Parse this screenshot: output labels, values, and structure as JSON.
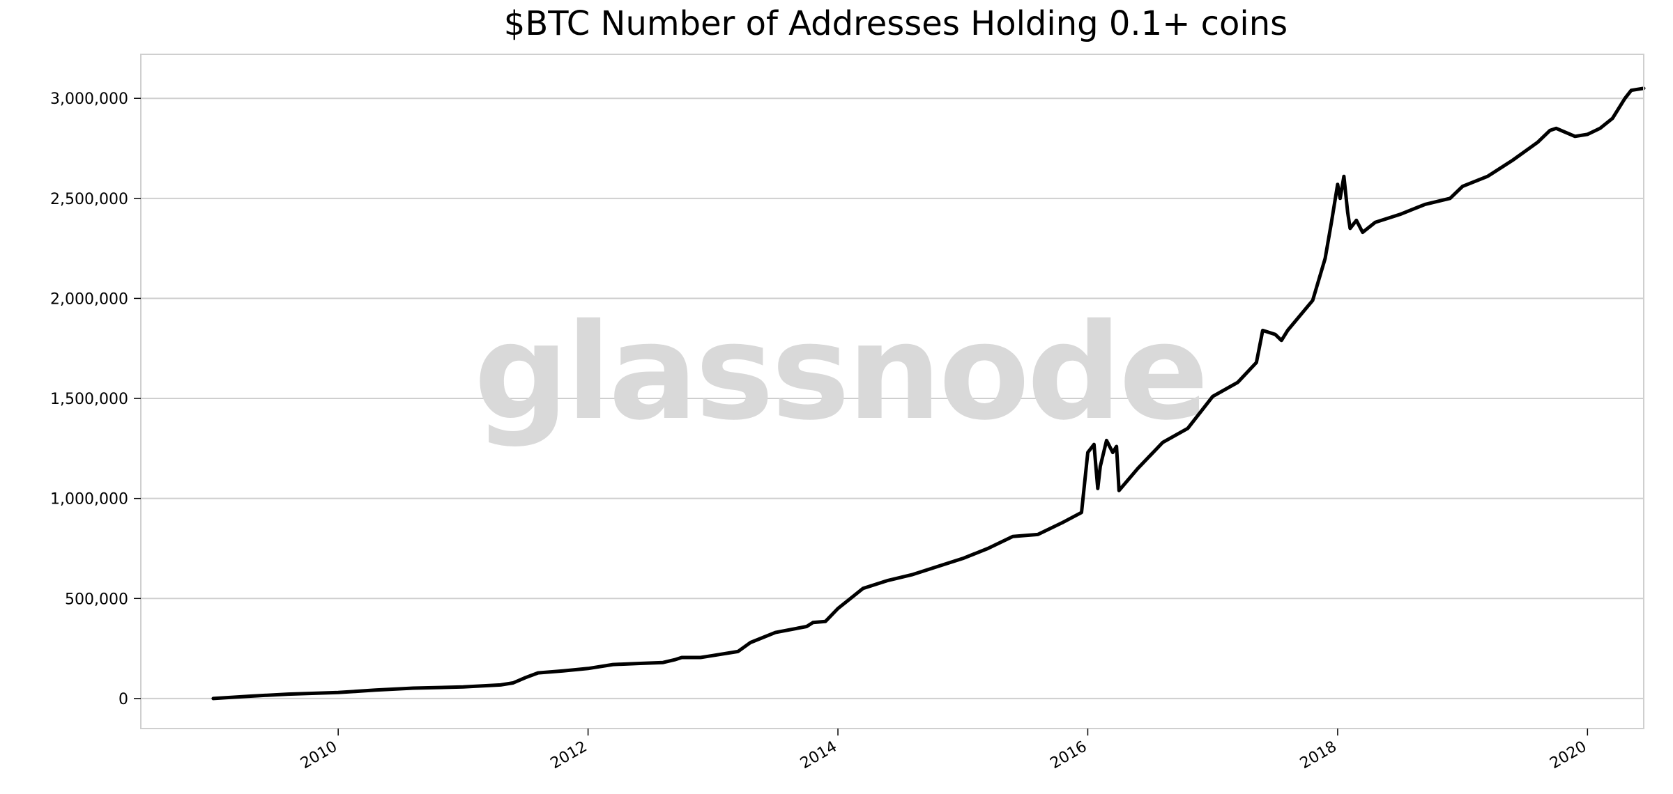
{
  "colors": {
    "line": "#000000",
    "grid": "#cfcfcf",
    "frame": "#cfcfcf",
    "watermark": "#d9d9d9",
    "background": "#ffffff"
  },
  "watermark": "glassnode",
  "chart_data": {
    "type": "line",
    "title": "$BTC Number of Addresses Holding 0.1+ coins",
    "xlabel": "",
    "ylabel": "",
    "grid": true,
    "grid_axis": "y",
    "legend": "none",
    "xlim": [
      2008.42,
      2020.45
    ],
    "ylim": [
      -150000,
      3220000
    ],
    "x_ticks": [
      {
        "value": 2010,
        "label": "2010"
      },
      {
        "value": 2012,
        "label": "2012"
      },
      {
        "value": 2014,
        "label": "2014"
      },
      {
        "value": 2016,
        "label": "2016"
      },
      {
        "value": 2018,
        "label": "2018"
      },
      {
        "value": 2020,
        "label": "2020"
      }
    ],
    "y_ticks": [
      {
        "value": 0,
        "label": "0"
      },
      {
        "value": 500000,
        "label": "500,000"
      },
      {
        "value": 1000000,
        "label": "1,000,000"
      },
      {
        "value": 1500000,
        "label": "1,500,000"
      },
      {
        "value": 2000000,
        "label": "2,000,000"
      },
      {
        "value": 2500000,
        "label": "2,500,000"
      },
      {
        "value": 3000000,
        "label": "3,000,000"
      }
    ],
    "series": [
      {
        "x": [
          2009.0,
          2009.3,
          2009.6,
          2010.0,
          2010.3,
          2010.6,
          2011.0,
          2011.3,
          2011.4,
          2011.5,
          2011.6,
          2011.8,
          2012.0,
          2012.2,
          2012.4,
          2012.6,
          2012.7,
          2012.75,
          2012.9,
          2013.0,
          2013.2,
          2013.3,
          2013.5,
          2013.75,
          2013.8,
          2013.9,
          2014.0,
          2014.1,
          2014.2,
          2014.4,
          2014.6,
          2014.8,
          2015.0,
          2015.2,
          2015.4,
          2015.6,
          2015.8,
          2015.95,
          2016.0,
          2016.05,
          2016.08,
          2016.1,
          2016.15,
          2016.2,
          2016.23,
          2016.25,
          2016.4,
          2016.6,
          2016.8,
          2017.0,
          2017.2,
          2017.35,
          2017.4,
          2017.5,
          2017.55,
          2017.6,
          2017.8,
          2017.9,
          2017.95,
          2018.0,
          2018.02,
          2018.05,
          2018.08,
          2018.1,
          2018.15,
          2018.2,
          2018.3,
          2018.5,
          2018.7,
          2018.9,
          2019.0,
          2019.2,
          2019.4,
          2019.6,
          2019.7,
          2019.75,
          2019.9,
          2020.0,
          2020.1,
          2020.2,
          2020.3,
          2020.35,
          2020.45
        ],
        "y": [
          0,
          12000,
          22000,
          30000,
          42000,
          52000,
          58000,
          68000,
          78000,
          105000,
          128000,
          138000,
          150000,
          170000,
          175000,
          180000,
          195000,
          205000,
          205000,
          215000,
          235000,
          280000,
          330000,
          360000,
          380000,
          385000,
          450000,
          500000,
          550000,
          590000,
          620000,
          660000,
          700000,
          750000,
          810000,
          820000,
          880000,
          930000,
          1230000,
          1270000,
          1050000,
          1160000,
          1290000,
          1230000,
          1260000,
          1040000,
          1150000,
          1280000,
          1350000,
          1510000,
          1580000,
          1680000,
          1840000,
          1820000,
          1790000,
          1840000,
          1990000,
          2200000,
          2380000,
          2570000,
          2500000,
          2610000,
          2430000,
          2350000,
          2390000,
          2330000,
          2380000,
          2420000,
          2470000,
          2500000,
          2560000,
          2610000,
          2690000,
          2780000,
          2840000,
          2850000,
          2810000,
          2820000,
          2850000,
          2900000,
          3000000,
          3040000,
          3050000
        ]
      }
    ]
  }
}
